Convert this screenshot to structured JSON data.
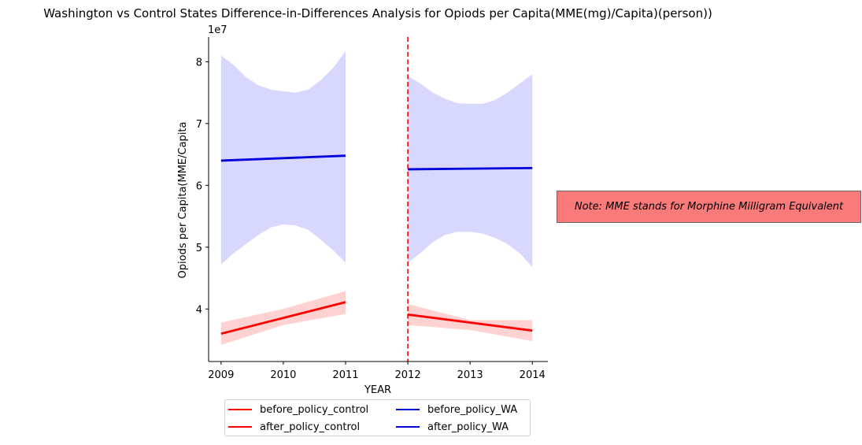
{
  "chart_data": {
    "type": "line",
    "title": "Washington vs Control States Difference-in-Differences Analysis for Opiods per Capita(MME(mg)/Capita)(person))",
    "xlabel": "YEAR",
    "ylabel": "Opiods per Capita(MME/Capita",
    "y_offset_label": "1e7",
    "xlim": [
      2008.8,
      2014.25
    ],
    "ylim": [
      3.15,
      8.4
    ],
    "x_ticks": [
      2009,
      2010,
      2011,
      2012,
      2013,
      2014
    ],
    "y_ticks": [
      4,
      5,
      6,
      7,
      8
    ],
    "grid": false,
    "policy_line": {
      "x": 2012,
      "color": "#ff0000",
      "style": "dashed"
    },
    "series": [
      {
        "name": "before_policy_control",
        "color": "#ff0000",
        "band_color": "#ffd2d2",
        "x": [
          2009,
          2011
        ],
        "y": [
          3.6,
          4.11
        ],
        "ci_x": [
          2009,
          2010,
          2011
        ],
        "ci_upper": [
          3.78,
          4.0,
          4.29
        ],
        "ci_lower": [
          3.42,
          3.74,
          3.92
        ]
      },
      {
        "name": "after_policy_control",
        "color": "#ff0000",
        "band_color": "#ffd2d2",
        "x": [
          2012,
          2014
        ],
        "y": [
          3.91,
          3.65
        ],
        "ci_x": [
          2012,
          2013,
          2014
        ],
        "ci_upper": [
          4.08,
          3.82,
          3.82
        ],
        "ci_lower": [
          3.74,
          3.66,
          3.48
        ]
      },
      {
        "name": "before_policy_WA",
        "color": "#0000dd",
        "band_color": "#d8d8ff",
        "x": [
          2009,
          2011
        ],
        "y": [
          6.4,
          6.48
        ],
        "ci_x": [
          2009,
          2009.2,
          2009.4,
          2009.6,
          2009.8,
          2010,
          2010.2,
          2010.4,
          2010.6,
          2010.8,
          2011
        ],
        "ci_upper": [
          8.1,
          7.95,
          7.75,
          7.62,
          7.55,
          7.52,
          7.5,
          7.55,
          7.7,
          7.9,
          8.17
        ],
        "ci_lower": [
          4.72,
          4.9,
          5.05,
          5.2,
          5.32,
          5.37,
          5.35,
          5.28,
          5.12,
          4.95,
          4.75
        ]
      },
      {
        "name": "after_policy_WA",
        "color": "#0000dd",
        "band_color": "#d8d8ff",
        "x": [
          2012,
          2014
        ],
        "y": [
          6.26,
          6.28
        ],
        "ci_x": [
          2012,
          2012.2,
          2012.4,
          2012.6,
          2012.8,
          2013,
          2013.2,
          2013.4,
          2013.6,
          2013.8,
          2014
        ],
        "ci_upper": [
          7.77,
          7.65,
          7.5,
          7.4,
          7.33,
          7.32,
          7.32,
          7.38,
          7.5,
          7.65,
          7.8
        ],
        "ci_lower": [
          4.75,
          4.9,
          5.08,
          5.2,
          5.25,
          5.25,
          5.22,
          5.15,
          5.05,
          4.9,
          4.68
        ]
      }
    ],
    "legend": {
      "placement": "bottom-center",
      "columns": 2,
      "entries": [
        "before_policy_control",
        "after_policy_control",
        "before_policy_WA",
        "after_policy_WA"
      ]
    }
  },
  "note": {
    "text": "Note: MME stands for Morphine Milligram Equivalent",
    "color": "#f87a7a"
  }
}
